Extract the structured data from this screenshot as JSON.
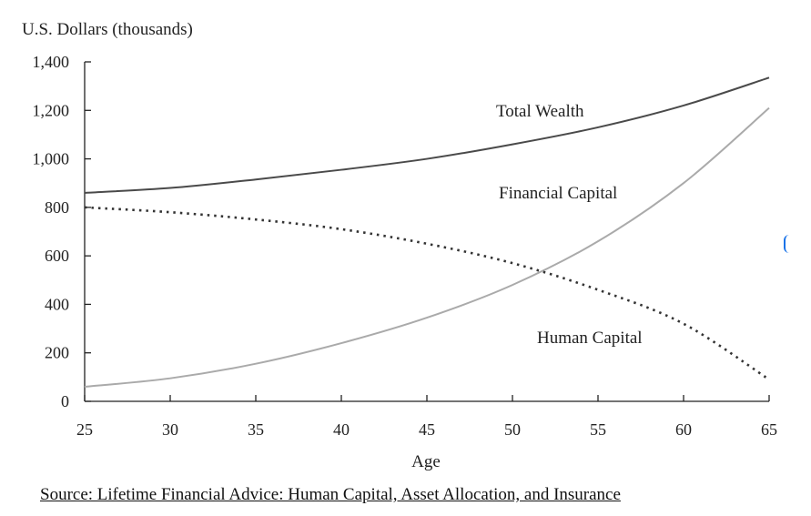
{
  "chart_data": {
    "type": "line",
    "ylabel": "U.S. Dollars (thousands)",
    "xlabel": "Age",
    "xlim": [
      25,
      65
    ],
    "ylim": [
      0,
      1400
    ],
    "x_ticks": [
      25,
      30,
      35,
      40,
      45,
      50,
      55,
      60,
      65
    ],
    "y_ticks": [
      0,
      200,
      400,
      600,
      800,
      1000,
      1200,
      1400
    ],
    "y_tick_labels": [
      "0",
      "200",
      "400",
      "600",
      "800",
      "1,000",
      "1,200",
      "1,400"
    ],
    "grid": false,
    "series": [
      {
        "name": "Total Wealth",
        "color": "#4a4a4a",
        "style": "solid",
        "x": [
          25,
          30,
          35,
          40,
          45,
          50,
          55,
          60,
          65
        ],
        "values": [
          860,
          880,
          915,
          955,
          1000,
          1060,
          1130,
          1220,
          1335
        ]
      },
      {
        "name": "Financial Capital",
        "color": "#aaaaaa",
        "style": "solid",
        "x": [
          25,
          30,
          35,
          40,
          45,
          50,
          55,
          60,
          65
        ],
        "values": [
          60,
          95,
          155,
          240,
          345,
          480,
          660,
          900,
          1210
        ]
      },
      {
        "name": "Human Capital",
        "color": "#333333",
        "style": "dotted",
        "x": [
          25,
          30,
          35,
          40,
          45,
          50,
          55,
          60,
          65
        ],
        "values": [
          800,
          780,
          750,
          710,
          650,
          570,
          460,
          320,
          90
        ]
      }
    ]
  },
  "source": "Source: Lifetime Financial Advice: Human Capital, Asset Allocation, and Insurance"
}
